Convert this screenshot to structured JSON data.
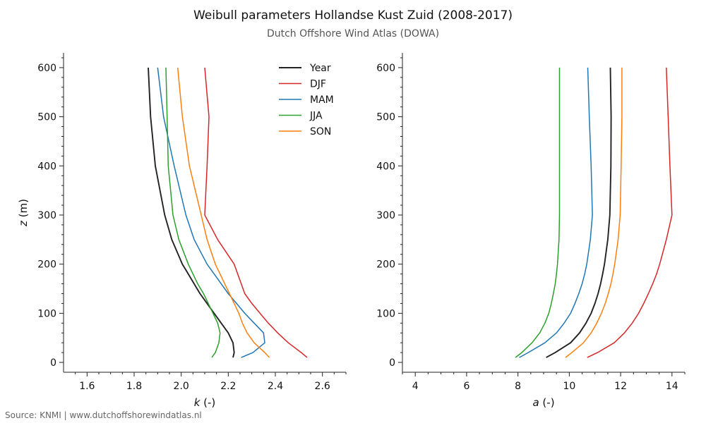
{
  "header": {
    "title": "Weibull parameters Hollandse Kust Zuid (2008-2017)",
    "subtitle": "Dutch Offshore Wind Atlas (DOWA)"
  },
  "footer": {
    "source": "Source: KNMI | www.dutchoffshorewindatlas.nl"
  },
  "chart_data": [
    {
      "type": "line",
      "xlabel": "k (-)",
      "ylabel": "z (m)",
      "xlim": [
        1.5,
        2.7
      ],
      "ylim": [
        -20,
        630
      ],
      "xticks": [
        "1.6",
        "1.8",
        "2.0",
        "2.2",
        "2.4",
        "2.6"
      ],
      "yticks": [
        "0",
        "100",
        "200",
        "300",
        "400",
        "500",
        "600"
      ],
      "legend_position": "top-right",
      "y": [
        10,
        20,
        40,
        60,
        80,
        100,
        120,
        140,
        160,
        180,
        200,
        250,
        300,
        400,
        500,
        600
      ],
      "series": [
        {
          "name": "Year",
          "color": "#222222",
          "values": [
            2.22,
            2.225,
            2.22,
            2.2,
            2.17,
            2.14,
            2.11,
            2.08,
            2.055,
            2.03,
            2.005,
            1.96,
            1.93,
            1.89,
            1.87,
            1.86
          ]
        },
        {
          "name": "DJF",
          "color": "#d62728",
          "values": [
            2.535,
            2.51,
            2.455,
            2.41,
            2.37,
            2.335,
            2.3,
            2.27,
            2.255,
            2.24,
            2.225,
            2.155,
            2.1,
            2.11,
            2.118,
            2.1
          ]
        },
        {
          "name": "MAM",
          "color": "#1f77b4",
          "values": [
            2.255,
            2.305,
            2.355,
            2.35,
            2.31,
            2.27,
            2.235,
            2.2,
            2.17,
            2.14,
            2.11,
            2.055,
            2.02,
            1.97,
            1.925,
            1.9
          ]
        },
        {
          "name": "JJA",
          "color": "#2ca02c",
          "values": [
            2.13,
            2.145,
            2.16,
            2.165,
            2.155,
            2.135,
            2.115,
            2.095,
            2.07,
            2.05,
            2.03,
            1.99,
            1.965,
            1.945,
            1.94,
            1.935
          ]
        },
        {
          "name": "SON",
          "color": "#ff7f0e",
          "values": [
            2.375,
            2.355,
            2.31,
            2.28,
            2.26,
            2.245,
            2.225,
            2.205,
            2.185,
            2.165,
            2.145,
            2.11,
            2.085,
            2.035,
            2.005,
            1.985
          ]
        }
      ]
    },
    {
      "type": "line",
      "xlabel": "a (-)",
      "ylabel": "",
      "xlim": [
        3.5,
        14.5
      ],
      "ylim": [
        -20,
        630
      ],
      "xticks": [
        "4",
        "6",
        "8",
        "10",
        "12",
        "14"
      ],
      "yticks": [
        "0",
        "100",
        "200",
        "300",
        "400",
        "500",
        "600"
      ],
      "y": [
        10,
        20,
        40,
        60,
        80,
        100,
        120,
        140,
        160,
        180,
        200,
        250,
        300,
        400,
        500,
        600
      ],
      "series": [
        {
          "name": "Year",
          "color": "#222222",
          "values": [
            9.1,
            9.45,
            10.05,
            10.4,
            10.65,
            10.85,
            11.0,
            11.12,
            11.22,
            11.3,
            11.37,
            11.5,
            11.58,
            11.62,
            11.63,
            11.6
          ]
        },
        {
          "name": "DJF",
          "color": "#d62728",
          "values": [
            10.7,
            11.1,
            11.75,
            12.15,
            12.45,
            12.7,
            12.9,
            13.08,
            13.25,
            13.4,
            13.52,
            13.78,
            14.0,
            13.92,
            13.85,
            13.78
          ]
        },
        {
          "name": "MAM",
          "color": "#1f77b4",
          "values": [
            8.05,
            8.4,
            9.05,
            9.5,
            9.8,
            10.05,
            10.22,
            10.37,
            10.5,
            10.6,
            10.68,
            10.82,
            10.9,
            10.85,
            10.78,
            10.72
          ]
        },
        {
          "name": "JJA",
          "color": "#2ca02c",
          "values": [
            7.9,
            8.15,
            8.55,
            8.85,
            9.05,
            9.2,
            9.3,
            9.38,
            9.45,
            9.5,
            9.54,
            9.6,
            9.62,
            9.62,
            9.62,
            9.62
          ]
        },
        {
          "name": "SON",
          "color": "#ff7f0e",
          "values": [
            9.85,
            10.1,
            10.55,
            10.85,
            11.07,
            11.25,
            11.4,
            11.52,
            11.62,
            11.7,
            11.77,
            11.9,
            11.98,
            12.02,
            12.05,
            12.05
          ]
        }
      ]
    }
  ]
}
